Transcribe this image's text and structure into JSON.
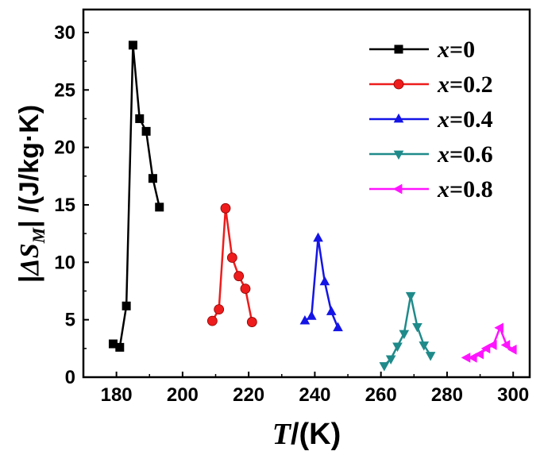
{
  "chart_data": {
    "type": "line",
    "xlim": [
      170,
      305
    ],
    "ylim": [
      0,
      32
    ],
    "xticks": [
      180,
      200,
      220,
      240,
      260,
      280,
      300
    ],
    "yticks": [
      0,
      5,
      10,
      15,
      20,
      25,
      30
    ],
    "xlabel": {
      "italic": "T",
      "rest": "/(K)"
    },
    "ylabel": {
      "bar_left": "|",
      "delta": "ΔS",
      "subscript": "M",
      "bar_right": "|",
      "units": " /(J/kg·K)"
    },
    "legend_position": "top-right",
    "series": [
      {
        "name": "x=0",
        "label_var": "x",
        "label_val": "=0",
        "marker": "square",
        "color": "#000000",
        "x": [
          179,
          181,
          183,
          185,
          187,
          189,
          191,
          193
        ],
        "y": [
          2.9,
          2.6,
          6.2,
          28.9,
          22.5,
          21.4,
          17.3,
          14.8
        ]
      },
      {
        "name": "x=0.2",
        "label_var": "x",
        "label_val": "=0.2",
        "marker": "circle",
        "color": "#ee1c1c",
        "x": [
          209,
          211,
          213,
          215,
          217,
          219,
          221
        ],
        "y": [
          4.9,
          5.9,
          14.7,
          10.4,
          8.8,
          7.7,
          4.8
        ]
      },
      {
        "name": "x=0.4",
        "label_var": "x",
        "label_val": "=0.4",
        "marker": "triangle-up",
        "color": "#1414e6",
        "x": [
          237,
          239,
          241,
          243,
          245,
          247
        ],
        "y": [
          4.9,
          5.3,
          12.1,
          8.3,
          5.7,
          4.3
        ]
      },
      {
        "name": "x=0.6",
        "label_var": "x",
        "label_val": "=0.6",
        "marker": "triangle-down",
        "color": "#1f8a8a",
        "x": [
          261,
          263,
          265,
          267,
          269,
          271,
          273,
          275
        ],
        "y": [
          1.0,
          1.6,
          2.7,
          3.8,
          7.1,
          4.4,
          2.8,
          1.9
        ]
      },
      {
        "name": "x=0.8",
        "label_var": "x",
        "label_val": "=0.8",
        "marker": "triangle-left",
        "color": "#ff14ff",
        "x": [
          286,
          288,
          290,
          292,
          294,
          296,
          298,
          300
        ],
        "y": [
          1.7,
          1.7,
          2.0,
          2.5,
          2.8,
          4.3,
          2.8,
          2.4
        ]
      }
    ]
  }
}
